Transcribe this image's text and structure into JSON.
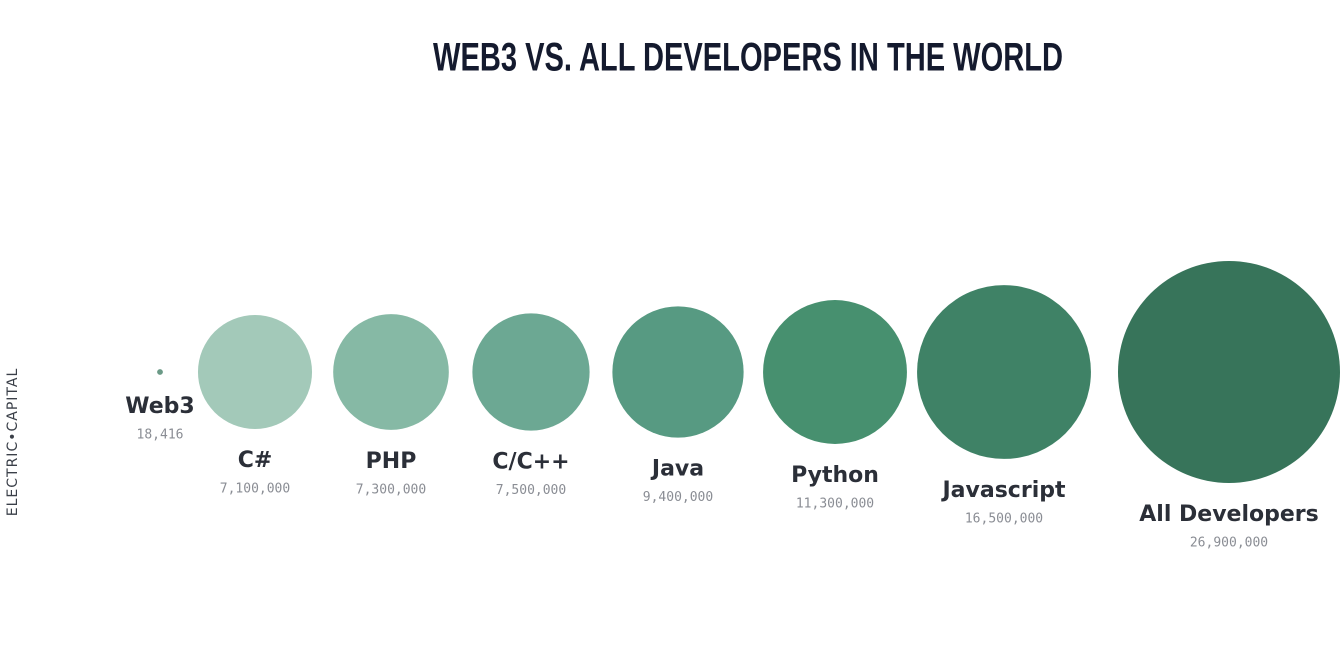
{
  "chart_data": {
    "type": "bubble",
    "title": "WEB3 VS. ALL DEVELOPERS IN THE WORLD",
    "watermark": "ELECTRIC•CAPITAL",
    "categories": [
      "Web3",
      "C#",
      "PHP",
      "C/C++",
      "Java",
      "Python",
      "Javascript",
      "All Developers"
    ],
    "values": [
      18416,
      7100000,
      7300000,
      7500000,
      9400000,
      11300000,
      16500000,
      26900000
    ],
    "value_labels": [
      "18,416",
      "7,100,000",
      "7,300,000",
      "7,500,000",
      "9,400,000",
      "11,300,000",
      "16,500,000",
      "26,900,000"
    ],
    "colors": [
      "#6b9a87",
      "#a3c9b9",
      "#86b9a5",
      "#6ca893",
      "#579a82",
      "#47906f",
      "#3f8266",
      "#37745a"
    ]
  }
}
